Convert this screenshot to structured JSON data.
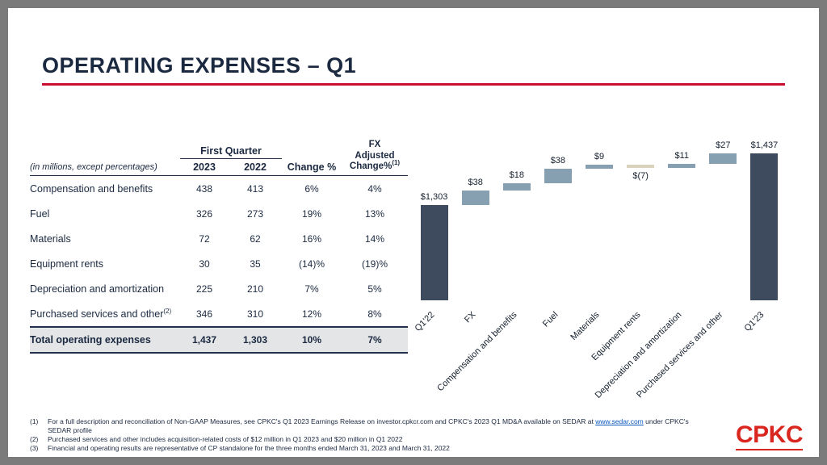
{
  "slide": {
    "title": "OPERATING EXPENSES – Q1",
    "logo_text": "CPKC",
    "accent_red": "#c8102e",
    "logo_red": "#d9261f"
  },
  "table": {
    "note": "(in millions, except percentages)",
    "group_header": "First Quarter",
    "headers": {
      "y2023": "2023",
      "y2022": "2022",
      "change": "Change %",
      "fx1": "FX",
      "fx2": "Adjusted",
      "fx3": "Change%",
      "fx_sup": "(1)"
    },
    "rows": [
      {
        "label": "Compensation and benefits",
        "y2023": "438",
        "y2022": "413",
        "change": "6%",
        "fx": "4%"
      },
      {
        "label": "Fuel",
        "y2023": "326",
        "y2022": "273",
        "change": "19%",
        "fx": "13%"
      },
      {
        "label": "Materials",
        "y2023": "72",
        "y2022": "62",
        "change": "16%",
        "fx": "14%"
      },
      {
        "label": "Equipment rents",
        "y2023": "30",
        "y2022": "35",
        "change": "(14)%",
        "fx": "(19)%"
      },
      {
        "label": "Depreciation and amortization",
        "y2023": "225",
        "y2022": "210",
        "change": "7%",
        "fx": "5%"
      },
      {
        "label": "Purchased services and other",
        "sup": "(2)",
        "y2023": "346",
        "y2022": "310",
        "change": "12%",
        "fx": "8%"
      }
    ],
    "total": {
      "label": "Total operating expenses",
      "y2023": "1,437",
      "y2022": "1,303",
      "change": "10%",
      "fx": "7%"
    }
  },
  "chart_data": {
    "type": "waterfall-bar",
    "title": "",
    "items": [
      {
        "label": "Q1'22",
        "display": "$1,303",
        "value": 1303,
        "kind": "total"
      },
      {
        "label": "FX",
        "display": "$38",
        "delta": 38,
        "kind": "increase"
      },
      {
        "label": "Compensation and benefits",
        "display": "$18",
        "delta": 18,
        "kind": "increase"
      },
      {
        "label": "Fuel",
        "display": "$38",
        "delta": 38,
        "kind": "increase"
      },
      {
        "label": "Materials",
        "display": "$9",
        "delta": 9,
        "kind": "increase"
      },
      {
        "label": "Equipment rents",
        "display": "$(7)",
        "delta": -7,
        "kind": "decrease"
      },
      {
        "label": "Depreciation and amortization",
        "display": "$11",
        "delta": 11,
        "kind": "increase"
      },
      {
        "label": "Purchased services and other",
        "display": "$27",
        "delta": 27,
        "kind": "increase"
      },
      {
        "label": "Q1'23",
        "display": "$1,437",
        "value": 1437,
        "kind": "total"
      }
    ],
    "colors": {
      "total": "#3e4b5e",
      "increase": "#87a0b1",
      "decrease": "#d9d2bd"
    },
    "axis_hidden": true
  },
  "footnotes": {
    "f1": {
      "num": "(1)",
      "before": "For a full description and reconciliation of Non-GAAP Measures, see CPKC's Q1 2023 Earnings Release on investor.cpkcr.com and CPKC's 2023 Q1 MD&A available on SEDAR at ",
      "link": "www.sedar.com",
      "after": " under CPKC's SEDAR profile"
    },
    "f2": {
      "num": "(2)",
      "text": "Purchased services and other includes acquisition-related costs of $12 million in Q1 2023 and $20 million in Q1 2022"
    },
    "f3": {
      "num": "(3)",
      "text": "Financial and operating results are representative of CP standalone for the three months ended March 31, 2023 and March 31, 2022"
    }
  }
}
